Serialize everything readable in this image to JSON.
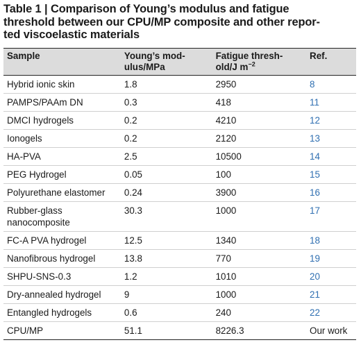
{
  "title": "Table 1 | Comparison of Young’s modulus and fatigue threshold between our CPU/MP composite and other reported viscoelastic materials",
  "title_lines": [
    "Table 1 | Comparison of Young’s modulus and fatigue",
    "threshold between our CPU/MP composite and other repor-",
    "ted viscoelastic materials"
  ],
  "columns": {
    "sample": "Sample",
    "modulus_line1": "Young’s mod-",
    "modulus_line2": "ulus/MPa",
    "fatigue_line1": "Fatigue thresh-",
    "fatigue_line2": "old/J m",
    "fatigue_sup": "−2",
    "ref": "Ref."
  },
  "rows": [
    {
      "sample": "Hybrid ionic skin",
      "modulus": "1.8",
      "fatigue": "2950",
      "ref": "8"
    },
    {
      "sample": "PAMPS/PAAm DN",
      "modulus": "0.3",
      "fatigue": "418",
      "ref": "11"
    },
    {
      "sample": "DMCI hydrogels",
      "modulus": "0.2",
      "fatigue": "4210",
      "ref": "12"
    },
    {
      "sample": "Ionogels",
      "modulus": "0.2",
      "fatigue": "2120",
      "ref": "13"
    },
    {
      "sample": "HA-PVA",
      "modulus": "2.5",
      "fatigue": "10500",
      "ref": "14"
    },
    {
      "sample": "PEG Hydrogel",
      "modulus": "0.05",
      "fatigue": "100",
      "ref": "15"
    },
    {
      "sample": "Polyurethane elastomer",
      "modulus": "0.24",
      "fatigue": "3900",
      "ref": "16"
    },
    {
      "sample": "Rubber-glass nanocomposite",
      "modulus": "30.3",
      "fatigue": "1000",
      "ref": "17"
    },
    {
      "sample": "FC-A PVA hydrogel",
      "modulus": "12.5",
      "fatigue": "1340",
      "ref": "18"
    },
    {
      "sample": "Nanofibrous hydrogel",
      "modulus": "13.8",
      "fatigue": "770",
      "ref": "19"
    },
    {
      "sample": "SHPU-SNS-0.3",
      "modulus": "1.2",
      "fatigue": "1010",
      "ref": "20"
    },
    {
      "sample": "Dry-annealed hydrogel",
      "modulus": "9",
      "fatigue": "1000",
      "ref": "21"
    },
    {
      "sample": "Entangled hydrogels",
      "modulus": "0.6",
      "fatigue": "240",
      "ref": "22"
    },
    {
      "sample": "CPU/MP",
      "modulus": "51.1",
      "fatigue": "8226.3",
      "ref": "Our work"
    }
  ],
  "colors": {
    "ref_link": "#2f6fb1",
    "header_bg": "#dcdcdc"
  }
}
